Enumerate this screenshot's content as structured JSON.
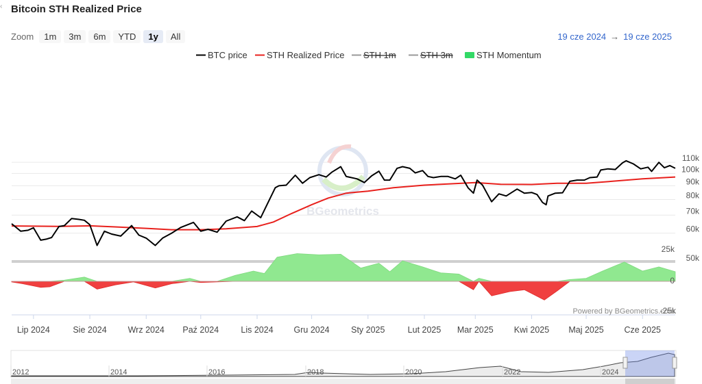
{
  "title": "Bitcoin STH Realized Price",
  "zoom": {
    "label": "Zoom",
    "buttons": [
      "1m",
      "3m",
      "6m",
      "YTD",
      "1y",
      "All"
    ],
    "active": "1y"
  },
  "range": {
    "from": "19 cze 2024",
    "arrow": "→",
    "to": "19 cze 2025"
  },
  "watermark": "BGeometrics",
  "credit": "Powered by BGeometrics.com",
  "colors": {
    "btc": "#000000",
    "sth_realized": "#e8201c",
    "sth_1m": "#777777",
    "sth_3m": "#777777",
    "momentum_pos": "#90e890",
    "momentum_neg": "#f04040"
  },
  "chart_data": {
    "type": "line",
    "title": "Bitcoin STH Realized Price",
    "x_start": "2024-06-19",
    "x_end": "2025-06-19",
    "legend": [
      {
        "name": "BTC price",
        "color": "#000000",
        "visible": true,
        "style": "line"
      },
      {
        "name": "STH Realized Price",
        "color": "#e8201c",
        "visible": true,
        "style": "line"
      },
      {
        "name": "STH 1m",
        "color": "#777777",
        "visible": false,
        "style": "line"
      },
      {
        "name": "STH 3m",
        "color": "#777777",
        "visible": false,
        "style": "line"
      },
      {
        "name": "STH Momentum",
        "color": "#33d966",
        "visible": true,
        "style": "area"
      }
    ],
    "legend_position": "top-center",
    "y_axis_price": {
      "ticks": [
        "110k",
        "100k",
        "90k",
        "80k",
        "70k",
        "60k",
        "50k"
      ],
      "tick_values": [
        110000,
        100000,
        90000,
        80000,
        70000,
        60000,
        50000
      ],
      "scale": "log"
    },
    "y_axis_momentum": {
      "ticks": [
        "25k",
        "0",
        "-25k"
      ],
      "tick_values": [
        25000,
        0,
        -25000
      ],
      "range": [
        -25000,
        25000
      ]
    },
    "x_ticks": [
      {
        "label": "Lip 2024",
        "date": "2024-07-01"
      },
      {
        "label": "Sie 2024",
        "date": "2024-08-01"
      },
      {
        "label": "Wrz 2024",
        "date": "2024-09-01"
      },
      {
        "label": "Paź 2024",
        "date": "2024-10-01"
      },
      {
        "label": "Lis 2024",
        "date": "2024-11-01"
      },
      {
        "label": "Gru 2024",
        "date": "2024-12-01"
      },
      {
        "label": "Sty 2025",
        "date": "2025-01-01"
      },
      {
        "label": "Lut 2025",
        "date": "2025-02-01"
      },
      {
        "label": "Mar 2025",
        "date": "2025-03-01"
      },
      {
        "label": "Kwi 2025",
        "date": "2025-04-01"
      },
      {
        "label": "Maj 2025",
        "date": "2025-05-01"
      },
      {
        "label": "Cze 2025",
        "date": "2025-06-01"
      }
    ],
    "series": [
      {
        "name": "BTC price",
        "points": [
          [
            "2024-06-19",
            65000
          ],
          [
            "2024-06-24",
            61000
          ],
          [
            "2024-06-28",
            61500
          ],
          [
            "2024-07-01",
            62800
          ],
          [
            "2024-07-05",
            56500
          ],
          [
            "2024-07-08",
            57000
          ],
          [
            "2024-07-11",
            57800
          ],
          [
            "2024-07-15",
            63500
          ],
          [
            "2024-07-18",
            64000
          ],
          [
            "2024-07-22",
            68000
          ],
          [
            "2024-07-26",
            67500
          ],
          [
            "2024-07-29",
            67000
          ],
          [
            "2024-08-01",
            64500
          ],
          [
            "2024-08-05",
            54000
          ],
          [
            "2024-08-09",
            61000
          ],
          [
            "2024-08-13",
            59500
          ],
          [
            "2024-08-18",
            58500
          ],
          [
            "2024-08-24",
            64000
          ],
          [
            "2024-08-28",
            59000
          ],
          [
            "2024-09-01",
            57500
          ],
          [
            "2024-09-06",
            54000
          ],
          [
            "2024-09-10",
            57500
          ],
          [
            "2024-09-15",
            60000
          ],
          [
            "2024-09-20",
            63000
          ],
          [
            "2024-09-27",
            65800
          ],
          [
            "2024-10-01",
            61000
          ],
          [
            "2024-10-05",
            62000
          ],
          [
            "2024-10-10",
            60500
          ],
          [
            "2024-10-15",
            66500
          ],
          [
            "2024-10-21",
            69000
          ],
          [
            "2024-10-25",
            66800
          ],
          [
            "2024-10-29",
            72500
          ],
          [
            "2024-11-03",
            68500
          ],
          [
            "2024-11-06",
            75500
          ],
          [
            "2024-11-11",
            88500
          ],
          [
            "2024-11-13",
            90000
          ],
          [
            "2024-11-17",
            90500
          ],
          [
            "2024-11-22",
            98500
          ],
          [
            "2024-11-26",
            92000
          ],
          [
            "2024-11-30",
            96500
          ],
          [
            "2024-12-05",
            99000
          ],
          [
            "2024-12-09",
            97000
          ],
          [
            "2024-12-12",
            101000
          ],
          [
            "2024-12-17",
            106000
          ],
          [
            "2024-12-20",
            97500
          ],
          [
            "2024-12-26",
            95500
          ],
          [
            "2024-12-30",
            92500
          ],
          [
            "2025-01-03",
            98000
          ],
          [
            "2025-01-07",
            102000
          ],
          [
            "2025-01-10",
            94500
          ],
          [
            "2025-01-13",
            94500
          ],
          [
            "2025-01-17",
            104500
          ],
          [
            "2025-01-20",
            106000
          ],
          [
            "2025-01-24",
            104500
          ],
          [
            "2025-01-27",
            100500
          ],
          [
            "2025-01-31",
            102500
          ],
          [
            "2025-02-03",
            97500
          ],
          [
            "2025-02-06",
            96500
          ],
          [
            "2025-02-10",
            97500
          ],
          [
            "2025-02-14",
            97500
          ],
          [
            "2025-02-18",
            95500
          ],
          [
            "2025-02-21",
            98500
          ],
          [
            "2025-02-25",
            88500
          ],
          [
            "2025-02-28",
            84500
          ],
          [
            "2025-03-02",
            94500
          ],
          [
            "2025-03-05",
            90500
          ],
          [
            "2025-03-10",
            78500
          ],
          [
            "2025-03-14",
            84000
          ],
          [
            "2025-03-18",
            82500
          ],
          [
            "2025-03-24",
            87500
          ],
          [
            "2025-03-28",
            84500
          ],
          [
            "2025-04-01",
            85000
          ],
          [
            "2025-04-04",
            83500
          ],
          [
            "2025-04-07",
            78000
          ],
          [
            "2025-04-09",
            76500
          ],
          [
            "2025-04-10",
            82500
          ],
          [
            "2025-04-14",
            84500
          ],
          [
            "2025-04-18",
            84800
          ],
          [
            "2025-04-22",
            93500
          ],
          [
            "2025-04-26",
            94500
          ],
          [
            "2025-04-30",
            94500
          ],
          [
            "2025-05-03",
            96500
          ],
          [
            "2025-05-07",
            97000
          ],
          [
            "2025-05-09",
            103000
          ],
          [
            "2025-05-13",
            104000
          ],
          [
            "2025-05-17",
            103500
          ],
          [
            "2025-05-21",
            109500
          ],
          [
            "2025-05-23",
            111500
          ],
          [
            "2025-05-27",
            108500
          ],
          [
            "2025-05-31",
            104000
          ],
          [
            "2025-06-04",
            105500
          ],
          [
            "2025-06-06",
            101800
          ],
          [
            "2025-06-10",
            110000
          ],
          [
            "2025-06-13",
            105000
          ],
          [
            "2025-06-16",
            107000
          ],
          [
            "2025-06-19",
            104500
          ]
        ]
      },
      {
        "name": "STH Realized Price",
        "points": [
          [
            "2024-06-19",
            63800
          ],
          [
            "2024-07-01",
            63700
          ],
          [
            "2024-07-15",
            63600
          ],
          [
            "2024-08-01",
            63900
          ],
          [
            "2024-08-15",
            63300
          ],
          [
            "2024-09-01",
            62500
          ],
          [
            "2024-09-15",
            61800
          ],
          [
            "2024-10-01",
            61800
          ],
          [
            "2024-10-15",
            62300
          ],
          [
            "2024-11-01",
            63500
          ],
          [
            "2024-11-10",
            66000
          ],
          [
            "2024-11-20",
            71000
          ],
          [
            "2024-12-01",
            76500
          ],
          [
            "2024-12-10",
            81000
          ],
          [
            "2024-12-20",
            84500
          ],
          [
            "2025-01-01",
            86000
          ],
          [
            "2025-01-15",
            88500
          ],
          [
            "2025-02-01",
            90500
          ],
          [
            "2025-02-15",
            91500
          ],
          [
            "2025-03-01",
            92500
          ],
          [
            "2025-03-15",
            91200
          ],
          [
            "2025-04-01",
            91000
          ],
          [
            "2025-04-15",
            92000
          ],
          [
            "2025-05-01",
            92000
          ],
          [
            "2025-05-15",
            93500
          ],
          [
            "2025-06-01",
            95500
          ],
          [
            "2025-06-19",
            97000
          ]
        ]
      },
      {
        "name": "STH Momentum",
        "points": [
          [
            "2024-06-19",
            -500
          ],
          [
            "2024-06-25",
            -2000
          ],
          [
            "2024-07-05",
            -5000
          ],
          [
            "2024-07-10",
            -4500
          ],
          [
            "2024-07-18",
            1000
          ],
          [
            "2024-07-29",
            3500
          ],
          [
            "2024-08-05",
            -6500
          ],
          [
            "2024-08-15",
            -3000
          ],
          [
            "2024-08-25",
            -500
          ],
          [
            "2024-09-06",
            -5500
          ],
          [
            "2024-09-15",
            -2000
          ],
          [
            "2024-09-25",
            2500
          ],
          [
            "2024-10-01",
            -1000
          ],
          [
            "2024-10-10",
            -500
          ],
          [
            "2024-10-20",
            5000
          ],
          [
            "2024-10-30",
            8500
          ],
          [
            "2024-11-05",
            6500
          ],
          [
            "2024-11-12",
            20000
          ],
          [
            "2024-11-23",
            23000
          ],
          [
            "2024-12-05",
            22000
          ],
          [
            "2024-12-17",
            22500
          ],
          [
            "2024-12-28",
            11000
          ],
          [
            "2025-01-07",
            15000
          ],
          [
            "2025-01-13",
            8000
          ],
          [
            "2025-01-20",
            17000
          ],
          [
            "2025-01-31",
            12000
          ],
          [
            "2025-02-10",
            7000
          ],
          [
            "2025-02-20",
            6000
          ],
          [
            "2025-02-28",
            -7000
          ],
          [
            "2025-03-03",
            2500
          ],
          [
            "2025-03-10",
            -12000
          ],
          [
            "2025-03-20",
            -8500
          ],
          [
            "2025-03-28",
            -7000
          ],
          [
            "2025-04-08",
            -15500
          ],
          [
            "2025-04-15",
            -8000
          ],
          [
            "2025-04-22",
            1500
          ],
          [
            "2025-05-01",
            2500
          ],
          [
            "2025-05-10",
            8500
          ],
          [
            "2025-05-22",
            16000
          ],
          [
            "2025-06-01",
            8500
          ],
          [
            "2025-06-10",
            12000
          ],
          [
            "2025-06-19",
            8000
          ]
        ]
      }
    ],
    "navigator_years": [
      "2012",
      "2014",
      "2016",
      "2018",
      "2020",
      "2022",
      "2024"
    ]
  }
}
